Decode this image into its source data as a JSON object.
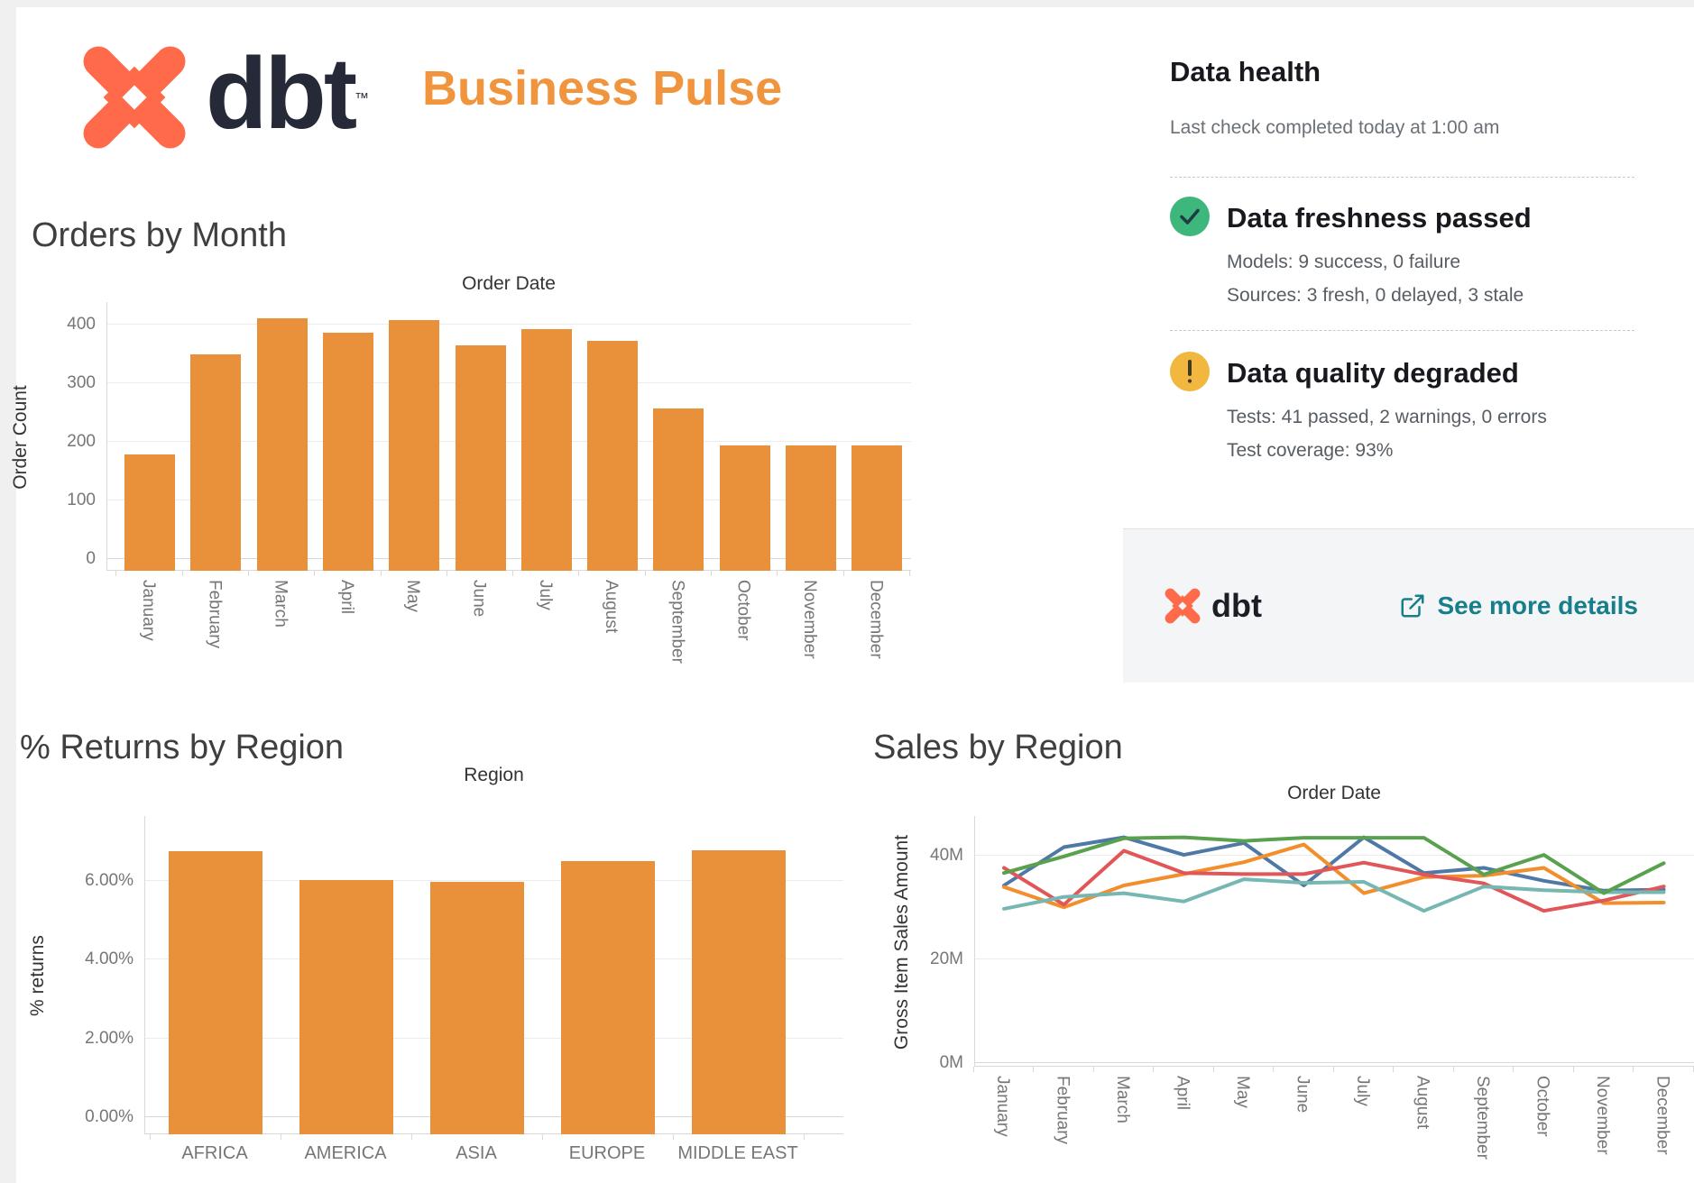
{
  "header": {
    "brand": "dbt",
    "trademark": "™",
    "title": "Business Pulse"
  },
  "colors": {
    "brand_coral": "#FF6A4B",
    "brand_navy": "#262A38",
    "title_orange": "#F0953E",
    "bar_orange": "#E8913A",
    "link_teal": "#177E8C",
    "badge_green": "#3DB77B",
    "badge_yellow": "#F1B73F",
    "tick_gray": "#767676"
  },
  "data_health": {
    "title": "Data health",
    "last_check": "Last check completed today at 1:00 am",
    "sections": [
      {
        "icon": "check",
        "title": "Data freshness passed",
        "lines": [
          "Models: 9 success, 0 failure",
          "Sources: 3 fresh, 0 delayed, 3 stale"
        ]
      },
      {
        "icon": "exclamation",
        "title": "Data quality degraded",
        "lines": [
          "Tests: 41 passed, 2 warnings, 0 errors",
          "Test coverage: 93%"
        ]
      }
    ],
    "footer": {
      "brand": "dbt",
      "link_label": "See more details"
    }
  },
  "chart_data": [
    {
      "id": "orders",
      "type": "bar",
      "section_title": "Orders by Month",
      "pane_title": "Order Date",
      "ylabel": "Order Count",
      "categories": [
        "January",
        "February",
        "March",
        "April",
        "May",
        "June",
        "July",
        "August",
        "September",
        "October",
        "November",
        "December"
      ],
      "values": [
        177,
        348,
        409,
        385,
        406,
        363,
        391,
        371,
        255,
        193,
        193,
        193
      ],
      "yticks": [
        {
          "value": 0,
          "label": "0"
        },
        {
          "value": 100,
          "label": "100"
        },
        {
          "value": 200,
          "label": "200"
        },
        {
          "value": 300,
          "label": "300"
        },
        {
          "value": 400,
          "label": "400"
        }
      ],
      "ylim": [
        0,
        437
      ],
      "bar_color": "#E8913A",
      "grid": true,
      "legend": "none"
    },
    {
      "id": "returns",
      "type": "bar",
      "section_title": "% Returns by Region",
      "pane_title": "Region",
      "ylabel": "% returns",
      "categories": [
        "AFRICA",
        "AMERICA",
        "ASIA",
        "EUROPE",
        "MIDDLE EAST"
      ],
      "values": [
        6.74,
        6.0,
        5.96,
        6.48,
        6.75
      ],
      "yticks": [
        {
          "value": 0,
          "label": "0.00%"
        },
        {
          "value": 2,
          "label": "2.00%"
        },
        {
          "value": 4,
          "label": "4.00%"
        },
        {
          "value": 6,
          "label": "6.00%"
        }
      ],
      "ylim": [
        0,
        7.63
      ],
      "bar_color": "#E8913A",
      "grid": true,
      "legend": "none"
    },
    {
      "id": "sales",
      "type": "line",
      "section_title": "Sales by Region",
      "pane_title": "Order Date",
      "ylabel": "Gross Item Sales Amount",
      "categories": [
        "January",
        "February",
        "March",
        "April",
        "May",
        "June",
        "July",
        "August",
        "September",
        "October",
        "November",
        "December"
      ],
      "unit": "M",
      "yticks": [
        {
          "value": 0,
          "label": "0M"
        },
        {
          "value": 20,
          "label": "20M"
        },
        {
          "value": 40,
          "label": "40M"
        }
      ],
      "ylim": [
        0,
        47.5
      ],
      "grid": true,
      "legend": "none",
      "series": [
        {
          "name": "blue",
          "color": "#4E79A7",
          "values": [
            34.1,
            41.5,
            43.4,
            40.0,
            42.3,
            34.1,
            43.4,
            36.5,
            37.5,
            35.0,
            33.1,
            33.3
          ]
        },
        {
          "name": "orange",
          "color": "#F28E2B",
          "values": [
            33.8,
            29.9,
            34.1,
            36.3,
            38.6,
            42.0,
            32.6,
            35.7,
            36.0,
            37.5,
            30.7,
            30.8
          ]
        },
        {
          "name": "red",
          "color": "#E15759",
          "values": [
            37.5,
            30.4,
            40.8,
            36.5,
            36.3,
            36.3,
            38.5,
            36.2,
            34.5,
            29.2,
            31.2,
            33.9
          ]
        },
        {
          "name": "teal",
          "color": "#76B7B2",
          "values": [
            29.6,
            31.9,
            32.6,
            31.0,
            35.3,
            34.6,
            34.8,
            29.2,
            33.9,
            33.2,
            32.8,
            32.8
          ]
        },
        {
          "name": "green",
          "color": "#59A14F",
          "values": [
            36.5,
            39.7,
            43.2,
            43.4,
            42.7,
            43.3,
            43.3,
            43.3,
            36.2,
            40.0,
            32.6,
            38.4
          ]
        }
      ]
    }
  ]
}
